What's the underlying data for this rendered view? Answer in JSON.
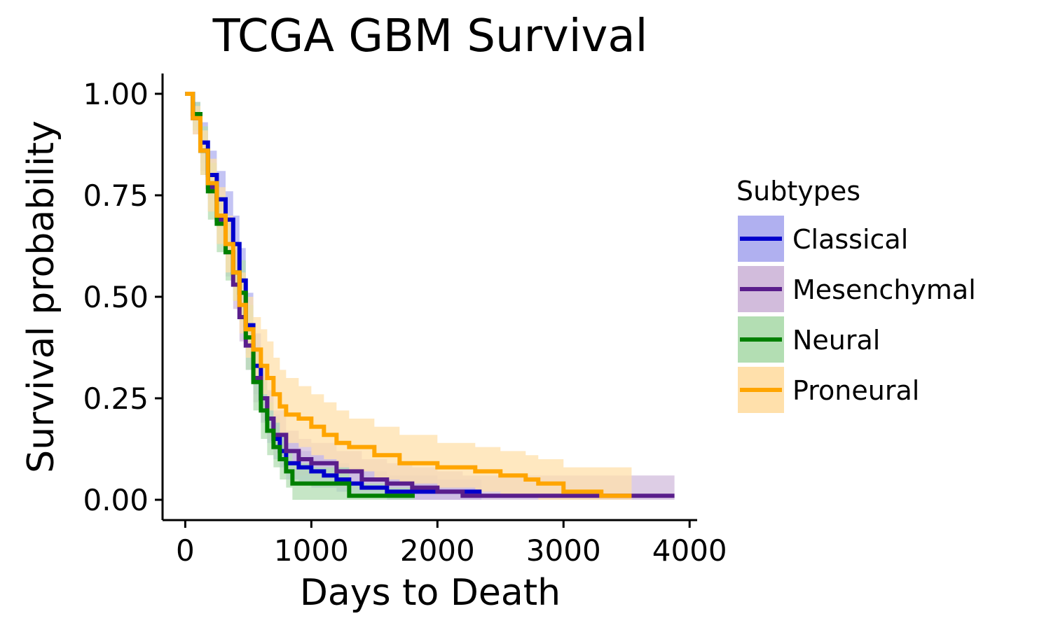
{
  "chart_data": {
    "type": "line",
    "title": "TCGA GBM Survival",
    "xlabel": "Days to Death",
    "ylabel": "Survival probability",
    "xlim": [
      -180,
      4060
    ],
    "ylim": [
      -0.05,
      1.05
    ],
    "x_ticks": [
      0,
      1000,
      2000,
      3000,
      4000
    ],
    "x_tick_labels": [
      "0",
      "1000",
      "2000",
      "3000",
      "4000"
    ],
    "y_ticks": [
      0,
      0.25,
      0.5,
      0.75,
      1.0
    ],
    "y_tick_labels": [
      "0.00",
      "0.25",
      "0.50",
      "0.75",
      "1.00"
    ],
    "grid": false,
    "legend": {
      "title": "Subtypes",
      "position": "right"
    },
    "series": [
      {
        "name": "Classical",
        "color": "#0000CC",
        "fill": "#B0B0F0",
        "x": [
          0,
          60,
          120,
          180,
          250,
          320,
          380,
          430,
          480,
          540,
          600,
          650,
          700,
          750,
          800,
          900,
          1000,
          1100,
          1200,
          1300,
          1400,
          1600,
          1800,
          2000,
          2200,
          2350
        ],
        "y": [
          1.0,
          0.95,
          0.88,
          0.8,
          0.74,
          0.69,
          0.63,
          0.54,
          0.43,
          0.33,
          0.25,
          0.2,
          0.15,
          0.12,
          0.09,
          0.08,
          0.07,
          0.06,
          0.05,
          0.04,
          0.03,
          0.02,
          0.02,
          0.02,
          0.02,
          0.02
        ],
        "upper": [
          1.0,
          0.98,
          0.93,
          0.86,
          0.81,
          0.76,
          0.7,
          0.62,
          0.51,
          0.41,
          0.33,
          0.27,
          0.21,
          0.17,
          0.14,
          0.12,
          0.11,
          0.1,
          0.09,
          0.08,
          0.07,
          0.06,
          0.06,
          0.05,
          0.05,
          0.05
        ],
        "lower": [
          1.0,
          0.92,
          0.83,
          0.74,
          0.67,
          0.62,
          0.56,
          0.47,
          0.36,
          0.26,
          0.19,
          0.14,
          0.1,
          0.08,
          0.05,
          0.04,
          0.03,
          0.03,
          0.02,
          0.01,
          0.01,
          0.0,
          0.0,
          0.0,
          0.0,
          0.0
        ]
      },
      {
        "name": "Mesenchymal",
        "color": "#5A1E8C",
        "fill": "#D2BCDC",
        "x": [
          0,
          60,
          120,
          180,
          250,
          320,
          380,
          430,
          480,
          540,
          600,
          650,
          700,
          800,
          900,
          1000,
          1200,
          1400,
          1600,
          1800,
          2000,
          2200,
          2500,
          3000,
          3500,
          3880
        ],
        "y": [
          1.0,
          0.94,
          0.86,
          0.77,
          0.69,
          0.61,
          0.53,
          0.45,
          0.38,
          0.3,
          0.25,
          0.2,
          0.16,
          0.12,
          0.1,
          0.09,
          0.07,
          0.05,
          0.04,
          0.03,
          0.02,
          0.01,
          0.01,
          0.01,
          0.01,
          0.01
        ],
        "upper": [
          1.0,
          0.97,
          0.91,
          0.83,
          0.75,
          0.67,
          0.59,
          0.51,
          0.44,
          0.36,
          0.31,
          0.26,
          0.22,
          0.17,
          0.15,
          0.14,
          0.12,
          0.1,
          0.09,
          0.08,
          0.07,
          0.06,
          0.06,
          0.06,
          0.06,
          0.06
        ],
        "lower": [
          1.0,
          0.9,
          0.81,
          0.71,
          0.63,
          0.55,
          0.47,
          0.39,
          0.32,
          0.24,
          0.19,
          0.15,
          0.11,
          0.07,
          0.06,
          0.05,
          0.03,
          0.02,
          0.01,
          0.0,
          0.0,
          0.0,
          0.0,
          0.0,
          0.0,
          0.0
        ]
      },
      {
        "name": "Neural",
        "color": "#008000",
        "fill": "#B3DEB3",
        "x": [
          0,
          60,
          120,
          180,
          250,
          320,
          380,
          430,
          480,
          540,
          600,
          650,
          700,
          750,
          800,
          850,
          1000,
          1200,
          1300,
          1400,
          1600,
          1820
        ],
        "y": [
          1.0,
          0.95,
          0.86,
          0.76,
          0.68,
          0.61,
          0.56,
          0.51,
          0.4,
          0.29,
          0.22,
          0.17,
          0.13,
          0.1,
          0.07,
          0.04,
          0.04,
          0.04,
          0.01,
          0.01,
          0.01,
          0.01
        ],
        "upper": [
          1.0,
          0.98,
          0.92,
          0.83,
          0.75,
          0.68,
          0.63,
          0.59,
          0.48,
          0.37,
          0.3,
          0.24,
          0.2,
          0.16,
          0.12,
          0.09,
          0.08,
          0.08,
          0.04,
          0.04,
          0.03,
          0.03
        ],
        "lower": [
          1.0,
          0.91,
          0.8,
          0.69,
          0.61,
          0.54,
          0.49,
          0.44,
          0.32,
          0.22,
          0.15,
          0.11,
          0.08,
          0.05,
          0.03,
          0.0,
          0.0,
          0.0,
          0.0,
          0.0,
          0.0,
          0.0
        ]
      },
      {
        "name": "Proneural",
        "color": "#FFA500",
        "fill": "#FFE0AB",
        "x": [
          0,
          60,
          120,
          180,
          250,
          320,
          380,
          430,
          480,
          540,
          600,
          650,
          700,
          750,
          800,
          900,
          1000,
          1100,
          1200,
          1300,
          1500,
          1700,
          2000,
          2300,
          2500,
          2700,
          2800,
          3000,
          3300,
          3540
        ],
        "y": [
          1.0,
          0.94,
          0.86,
          0.78,
          0.7,
          0.63,
          0.56,
          0.48,
          0.42,
          0.37,
          0.33,
          0.3,
          0.26,
          0.23,
          0.21,
          0.2,
          0.18,
          0.16,
          0.14,
          0.13,
          0.11,
          0.09,
          0.08,
          0.07,
          0.06,
          0.05,
          0.04,
          0.02,
          0.01,
          0.01
        ],
        "upper": [
          1.0,
          0.97,
          0.91,
          0.84,
          0.77,
          0.7,
          0.63,
          0.56,
          0.5,
          0.45,
          0.42,
          0.39,
          0.35,
          0.32,
          0.3,
          0.28,
          0.26,
          0.24,
          0.22,
          0.2,
          0.18,
          0.16,
          0.14,
          0.13,
          0.12,
          0.11,
          0.1,
          0.08,
          0.08,
          0.08
        ],
        "lower": [
          1.0,
          0.9,
          0.8,
          0.71,
          0.63,
          0.56,
          0.49,
          0.41,
          0.35,
          0.3,
          0.26,
          0.22,
          0.19,
          0.16,
          0.14,
          0.13,
          0.11,
          0.1,
          0.08,
          0.07,
          0.05,
          0.04,
          0.03,
          0.02,
          0.01,
          0.01,
          0.0,
          0.0,
          0.0,
          0.0
        ]
      }
    ]
  }
}
